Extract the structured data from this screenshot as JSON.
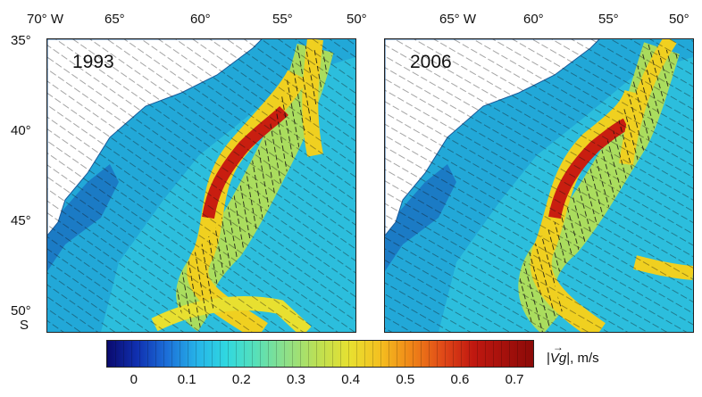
{
  "colors": {
    "land": "#ffffff",
    "ocean_low": "#1a6fc0",
    "ocean_mid": "#30c8e0",
    "current_mid": "#b8e050",
    "current_high": "#f0d020",
    "current_peak": "#c81e10",
    "arrow": "#111111"
  },
  "top_axis": {
    "left": [
      "70° W",
      "65°",
      "60°",
      "55°",
      "50°"
    ],
    "right": [
      "65° W",
      "60°",
      "55°",
      "50°"
    ]
  },
  "left_axis": [
    "35°",
    "40°",
    "45°",
    "50°",
    "S"
  ],
  "panels": [
    {
      "id": "left",
      "year": "1993"
    },
    {
      "id": "right",
      "year": "2006"
    }
  ],
  "colorbar": {
    "ticks": [
      "0",
      "0.1",
      "0.2",
      "0.3",
      "0.4",
      "0.5",
      "0.6",
      "0.7"
    ],
    "min": -0.05,
    "max": 0.73,
    "unit_symbol": "Vg",
    "unit_text": ", m/s"
  }
}
